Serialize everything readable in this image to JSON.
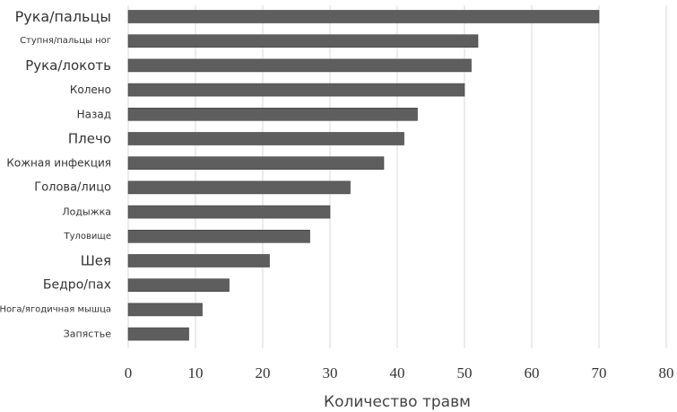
{
  "chart_data": {
    "type": "bar",
    "orientation": "horizontal",
    "categories": [
      "Рука/пальцы",
      "Ступня/пальцы ног",
      "Рука/локоть",
      "Колено",
      "Назад",
      "Плечо",
      "Кожная инфекция",
      "Голова/лицо",
      "Лодыжка",
      "Туловище",
      "Шея",
      "Бедро/пах",
      "Нога/ягодичная мышца",
      "Запястье"
    ],
    "values": [
      70,
      52,
      51,
      50,
      43,
      41,
      38,
      33,
      30,
      27,
      21,
      15,
      11,
      9
    ],
    "xlabel": "Количество травм",
    "xlim": [
      0,
      80
    ],
    "xticks": [
      0,
      10,
      20,
      30,
      40,
      50,
      60,
      70,
      80
    ],
    "grid": "vertical",
    "bar_color": "#5e5e5e"
  }
}
